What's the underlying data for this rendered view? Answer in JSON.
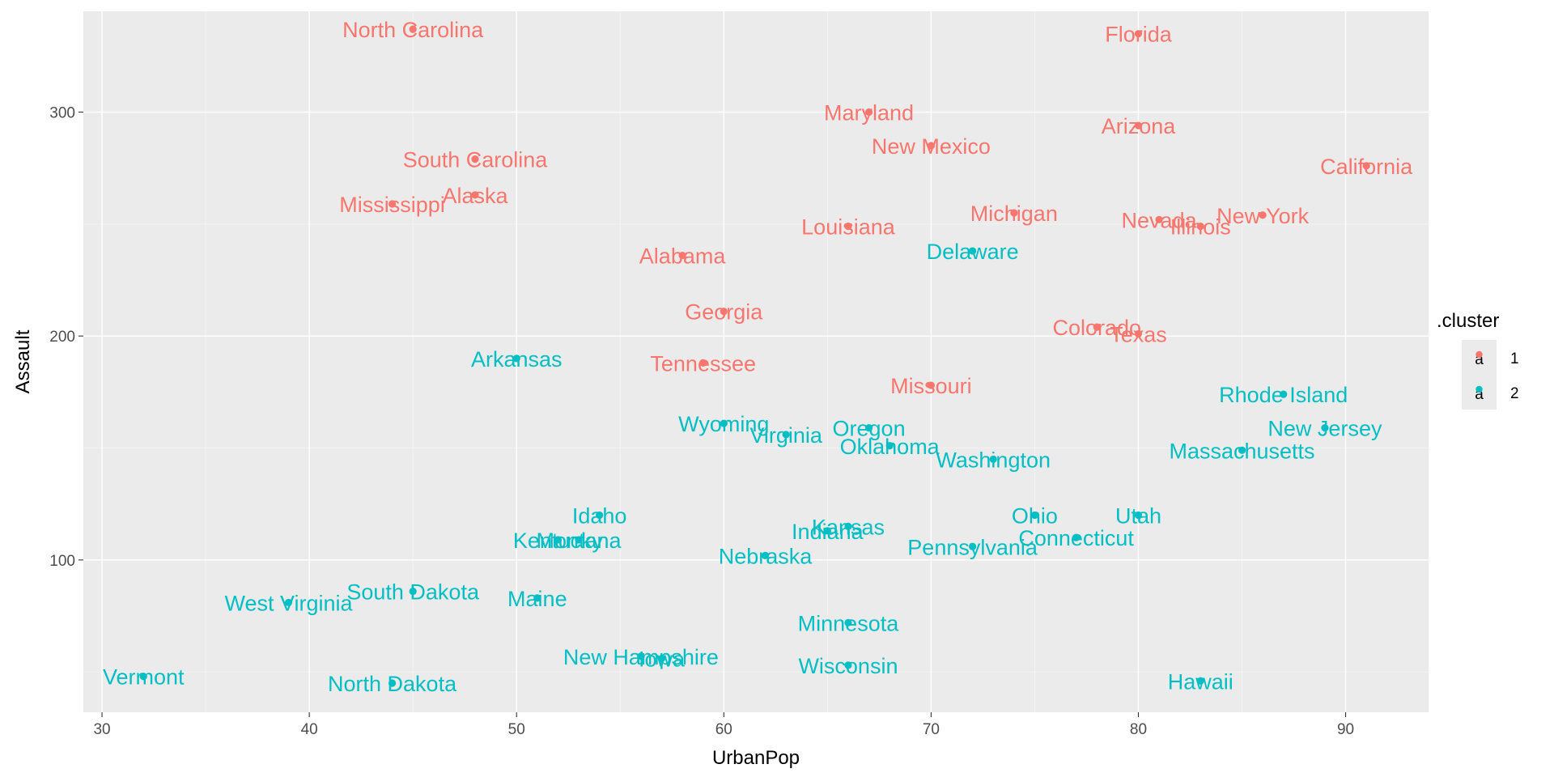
{
  "colors": {
    "cluster_1": "#F8766D",
    "cluster_2": "#00BFC4"
  },
  "chart_data": {
    "type": "scatter",
    "title": "",
    "xlabel": "UrbanPop",
    "ylabel": "Assault",
    "xlim": [
      29.1,
      94.0
    ],
    "ylim": [
      32.0,
      345.0
    ],
    "x_ticks": [
      30,
      40,
      50,
      60,
      70,
      80,
      90
    ],
    "y_ticks": [
      100,
      200,
      300
    ],
    "grid": true,
    "legend": {
      "title": ".cluster",
      "position": "right",
      "entries": [
        {
          "label": "1",
          "symbol": "a",
          "color": "#F8766D"
        },
        {
          "label": "2",
          "symbol": "a",
          "color": "#00BFC4"
        }
      ]
    },
    "series": [
      {
        "name": "1",
        "color": "#F8766D",
        "points": [
          {
            "label": "Alabama",
            "x": 58,
            "y": 236
          },
          {
            "label": "Alaska",
            "x": 48,
            "y": 263
          },
          {
            "label": "Arizona",
            "x": 80,
            "y": 294
          },
          {
            "label": "California",
            "x": 91,
            "y": 276
          },
          {
            "label": "Colorado",
            "x": 78,
            "y": 204
          },
          {
            "label": "Florida",
            "x": 80,
            "y": 335
          },
          {
            "label": "Georgia",
            "x": 60,
            "y": 211
          },
          {
            "label": "Illinois",
            "x": 83,
            "y": 249
          },
          {
            "label": "Louisiana",
            "x": 66,
            "y": 249
          },
          {
            "label": "Maryland",
            "x": 67,
            "y": 300
          },
          {
            "label": "Michigan",
            "x": 74,
            "y": 255
          },
          {
            "label": "Mississippi",
            "x": 44,
            "y": 259
          },
          {
            "label": "Missouri",
            "x": 70,
            "y": 178
          },
          {
            "label": "Nevada",
            "x": 81,
            "y": 252
          },
          {
            "label": "New Mexico",
            "x": 70,
            "y": 285
          },
          {
            "label": "New York",
            "x": 86,
            "y": 254
          },
          {
            "label": "North Carolina",
            "x": 45,
            "y": 337
          },
          {
            "label": "South Carolina",
            "x": 48,
            "y": 279
          },
          {
            "label": "Tennessee",
            "x": 59,
            "y": 188
          },
          {
            "label": "Texas",
            "x": 80,
            "y": 201
          }
        ]
      },
      {
        "name": "2",
        "color": "#00BFC4",
        "points": [
          {
            "label": "Arkansas",
            "x": 50,
            "y": 190
          },
          {
            "label": "Connecticut",
            "x": 77,
            "y": 110
          },
          {
            "label": "Delaware",
            "x": 72,
            "y": 238
          },
          {
            "label": "Hawaii",
            "x": 83,
            "y": 46
          },
          {
            "label": "Idaho",
            "x": 54,
            "y": 120
          },
          {
            "label": "Indiana",
            "x": 65,
            "y": 113
          },
          {
            "label": "Iowa",
            "x": 57,
            "y": 56
          },
          {
            "label": "Kansas",
            "x": 66,
            "y": 115
          },
          {
            "label": "Kentucky",
            "x": 52,
            "y": 109
          },
          {
            "label": "Maine",
            "x": 51,
            "y": 83
          },
          {
            "label": "Massachusetts",
            "x": 85,
            "y": 149
          },
          {
            "label": "Minnesota",
            "x": 66,
            "y": 72
          },
          {
            "label": "Montana",
            "x": 53,
            "y": 109
          },
          {
            "label": "Nebraska",
            "x": 62,
            "y": 102
          },
          {
            "label": "New Hampshire",
            "x": 56,
            "y": 57
          },
          {
            "label": "New Jersey",
            "x": 89,
            "y": 159
          },
          {
            "label": "North Dakota",
            "x": 44,
            "y": 45
          },
          {
            "label": "Ohio",
            "x": 75,
            "y": 120
          },
          {
            "label": "Oklahoma",
            "x": 68,
            "y": 151
          },
          {
            "label": "Oregon",
            "x": 67,
            "y": 159
          },
          {
            "label": "Pennsylvania",
            "x": 72,
            "y": 106
          },
          {
            "label": "Rhode Island",
            "x": 87,
            "y": 174
          },
          {
            "label": "South Dakota",
            "x": 45,
            "y": 86
          },
          {
            "label": "Utah",
            "x": 80,
            "y": 120
          },
          {
            "label": "Vermont",
            "x": 32,
            "y": 48
          },
          {
            "label": "Virginia",
            "x": 63,
            "y": 156
          },
          {
            "label": "Washington",
            "x": 73,
            "y": 145
          },
          {
            "label": "West Virginia",
            "x": 39,
            "y": 81
          },
          {
            "label": "Wisconsin",
            "x": 66,
            "y": 53
          },
          {
            "label": "Wyoming",
            "x": 60,
            "y": 161
          }
        ]
      }
    ]
  }
}
